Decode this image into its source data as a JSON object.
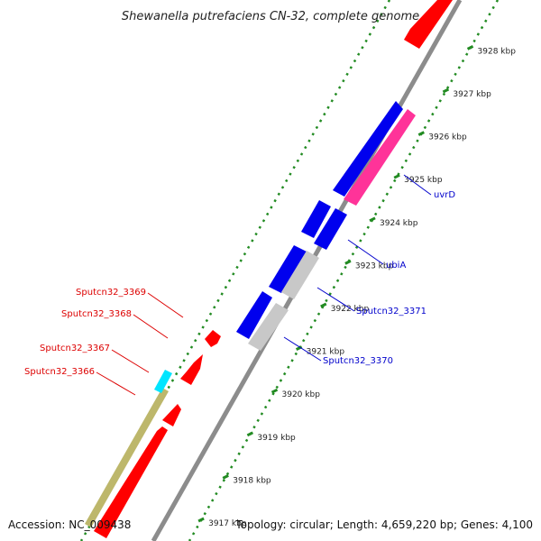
{
  "title": "Shewanella putrefaciens CN-32, complete genome",
  "footer": {
    "accession": "Accession: NC_009438",
    "topology": "Topology: circular; Length: 4,659,220 bp; Genes: 4,100"
  },
  "colors": {
    "backbone": "#8c8c8c",
    "ticks": "#228b22",
    "cds_red": "#ff0000",
    "cds_blue": "#0000ee",
    "cds_gray": "#c8c8c8",
    "cds_pink": "#ff3399",
    "cds_cyan": "#00e5ff",
    "cds_olive": "#bdb76b",
    "label_red": "#dd0000",
    "label_blue": "#0000cc"
  },
  "ticks": [
    {
      "label": "3917 kbp"
    },
    {
      "label": "3918 kbp"
    },
    {
      "label": "3919 kbp"
    },
    {
      "label": "3920 kbp"
    },
    {
      "label": "3921 kbp"
    },
    {
      "label": "3922 kbp"
    },
    {
      "label": "3923 kbp"
    },
    {
      "label": "3924 kbp"
    },
    {
      "label": "3925 kbp"
    },
    {
      "label": "3926 kbp"
    },
    {
      "label": "3927 kbp"
    },
    {
      "label": "3928 kbp"
    }
  ],
  "gene_labels": {
    "left": [
      "Sputcn32_3369",
      "Sputcn32_3368",
      "Sputcn32_3367",
      "Sputcn32_3366"
    ],
    "right": [
      "uvrD",
      "ubiA",
      "Sputcn32_3371",
      "Sputcn32_3370"
    ]
  }
}
